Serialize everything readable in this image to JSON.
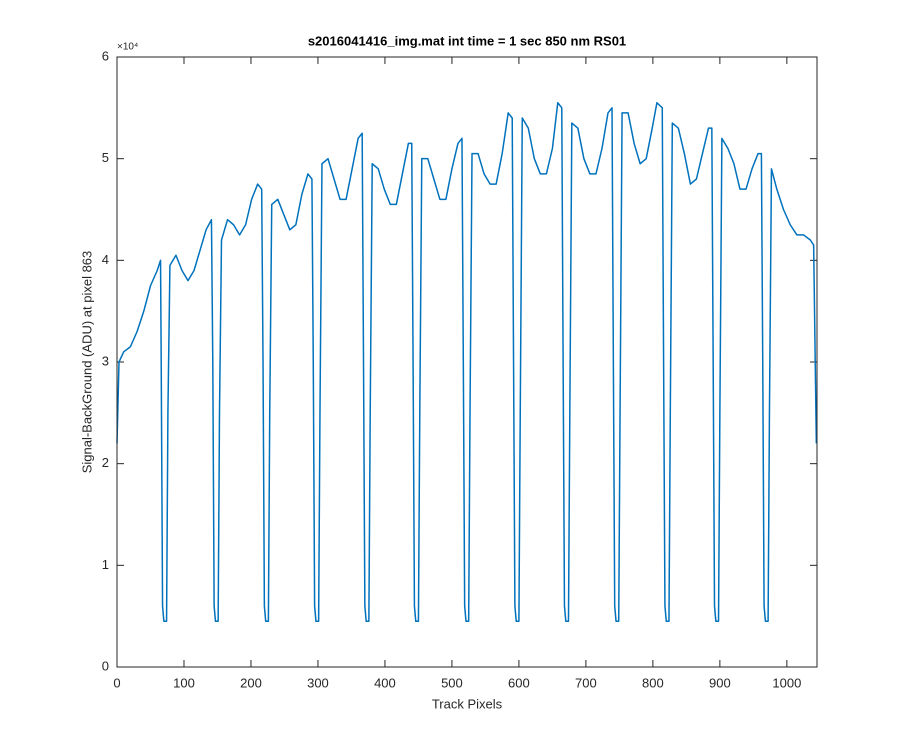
{
  "chart_data": {
    "type": "line",
    "title": "s2016041416_img.mat int time = 1 sec  850 nm RS01",
    "x_label": "Track Pixels",
    "y_label": "Signal-BackGround (ADU) at pixel 863",
    "y_exponent_label": "×10⁴",
    "xlim": [
      0,
      1045
    ],
    "ylim": [
      0,
      6
    ],
    "xticks": [
      0,
      100,
      200,
      300,
      400,
      500,
      600,
      700,
      800,
      900,
      1000
    ],
    "yticks": [
      0,
      1,
      2,
      3,
      4,
      5,
      6
    ],
    "grid": false,
    "x": [
      0,
      3,
      10,
      20,
      30,
      40,
      50,
      60,
      65,
      66,
      68,
      70,
      74,
      76,
      79,
      88,
      97,
      106,
      115,
      124,
      133,
      141,
      143,
      145,
      147,
      151,
      153,
      156,
      165,
      174,
      183,
      192,
      201,
      210,
      216,
      218,
      220,
      222,
      226,
      228,
      231,
      240,
      249,
      258,
      267,
      276,
      285,
      291,
      293,
      295,
      297,
      301,
      303,
      306,
      315,
      324,
      333,
      342,
      351,
      360,
      366,
      368,
      370,
      372,
      376,
      378,
      381,
      390,
      399,
      408,
      417,
      426,
      435,
      440,
      442,
      444,
      446,
      450,
      452,
      455,
      464,
      473,
      482,
      491,
      500,
      509,
      515,
      517,
      519,
      521,
      525,
      527,
      530,
      539,
      548,
      557,
      566,
      575,
      584,
      590,
      592,
      594,
      596,
      600,
      602,
      605,
      614,
      623,
      632,
      641,
      650,
      658,
      664,
      666,
      668,
      670,
      674,
      676,
      679,
      688,
      697,
      706,
      715,
      724,
      733,
      739,
      741,
      743,
      745,
      749,
      751,
      754,
      763,
      772,
      781,
      790,
      799,
      806,
      814,
      816,
      818,
      820,
      824,
      826,
      829,
      838,
      847,
      856,
      865,
      874,
      883,
      888,
      890,
      892,
      894,
      898,
      900,
      903,
      912,
      921,
      930,
      939,
      948,
      957,
      962,
      964,
      966,
      968,
      972,
      974,
      977,
      985,
      995,
      1005,
      1015,
      1025,
      1035,
      1040,
      1044
    ],
    "series": [
      {
        "name": "Signal",
        "color": "#0072bd",
        "values": [
          2.2,
          3.0,
          3.1,
          3.15,
          3.3,
          3.5,
          3.75,
          3.9,
          4.0,
          3.0,
          0.6,
          0.45,
          0.45,
          2.5,
          3.95,
          4.05,
          3.9,
          3.8,
          3.9,
          4.1,
          4.3,
          4.4,
          3.0,
          0.6,
          0.45,
          0.45,
          2.5,
          4.2,
          4.4,
          4.35,
          4.25,
          4.35,
          4.6,
          4.75,
          4.7,
          3.0,
          0.6,
          0.45,
          0.45,
          2.5,
          4.55,
          4.6,
          4.45,
          4.3,
          4.35,
          4.65,
          4.85,
          4.8,
          3.0,
          0.6,
          0.45,
          0.45,
          2.5,
          4.95,
          5.0,
          4.8,
          4.6,
          4.6,
          4.9,
          5.2,
          5.25,
          3.0,
          0.6,
          0.45,
          0.45,
          2.5,
          4.95,
          4.9,
          4.7,
          4.55,
          4.55,
          4.85,
          5.15,
          5.15,
          3.0,
          0.6,
          0.45,
          0.45,
          2.5,
          5.0,
          5.0,
          4.8,
          4.6,
          4.6,
          4.9,
          5.15,
          5.2,
          3.0,
          0.6,
          0.45,
          0.45,
          2.5,
          5.05,
          5.05,
          4.85,
          4.75,
          4.75,
          5.05,
          5.45,
          5.4,
          3.0,
          0.6,
          0.45,
          0.45,
          2.5,
          5.4,
          5.3,
          5.0,
          4.85,
          4.85,
          5.1,
          5.55,
          5.5,
          3.0,
          0.6,
          0.45,
          0.45,
          2.5,
          5.35,
          5.3,
          5.0,
          4.85,
          4.85,
          5.1,
          5.45,
          5.5,
          3.0,
          0.6,
          0.45,
          0.45,
          2.5,
          5.45,
          5.45,
          5.15,
          4.95,
          5.0,
          5.3,
          5.55,
          5.5,
          3.0,
          0.6,
          0.45,
          0.45,
          2.5,
          5.35,
          5.3,
          5.05,
          4.75,
          4.8,
          5.05,
          5.3,
          5.3,
          3.0,
          0.6,
          0.45,
          0.45,
          2.5,
          5.2,
          5.1,
          4.95,
          4.7,
          4.7,
          4.9,
          5.05,
          5.05,
          3.0,
          0.6,
          0.45,
          0.45,
          2.5,
          4.9,
          4.7,
          4.5,
          4.35,
          4.25,
          4.25,
          4.2,
          4.15,
          2.2
        ]
      }
    ]
  }
}
